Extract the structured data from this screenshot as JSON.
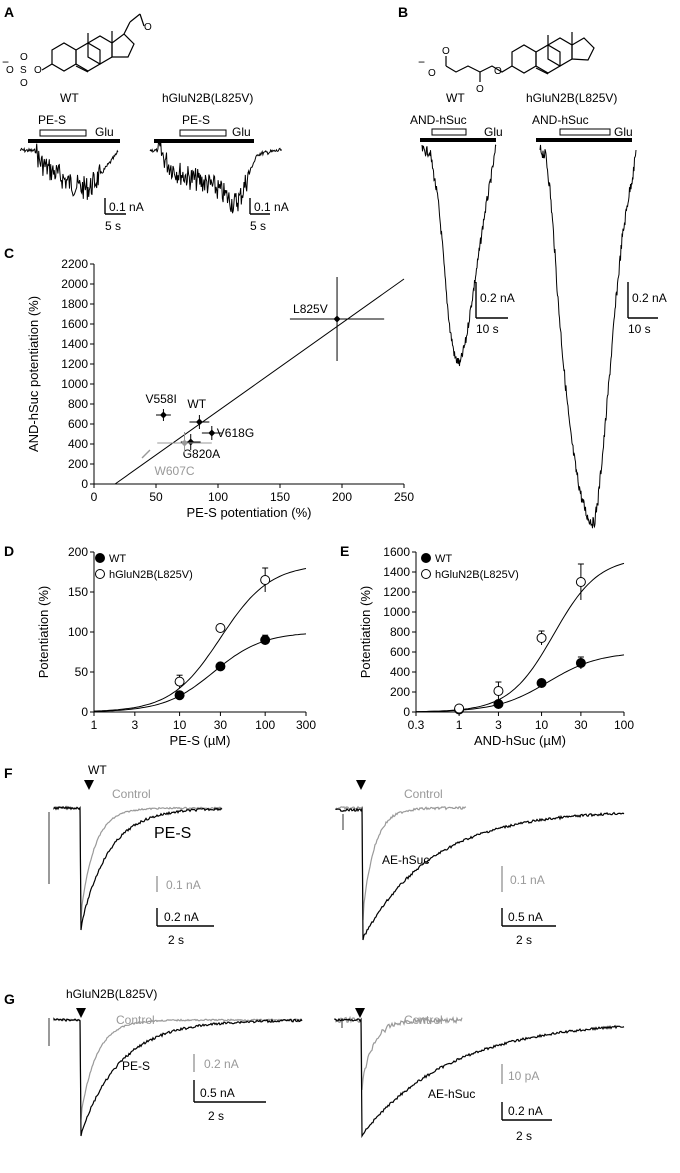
{
  "panels": {
    "A": {
      "label": "A",
      "left": {
        "title": "WT",
        "drug": "PE-S",
        "agonist": "Glu",
        "scale_current": "0.1 nA",
        "scale_time": "5 s"
      },
      "right": {
        "title": "hGluN2B(L825V)",
        "drug": "PE-S",
        "agonist": "Glu",
        "scale_current": "0.1 nA",
        "scale_time": "5 s"
      }
    },
    "B": {
      "label": "B",
      "left": {
        "title": "WT",
        "drug": "AND-hSuc",
        "agonist": "Glu",
        "scale_current": "0.2 nA",
        "scale_time": "10 s"
      },
      "right": {
        "title": "hGluN2B(L825V)",
        "drug": "AND-hSuc",
        "agonist": "Glu",
        "scale_current": "0.2 nA",
        "scale_time": "10 s"
      }
    },
    "C": {
      "label": "C"
    },
    "D": {
      "label": "D"
    },
    "E": {
      "label": "E"
    },
    "F": {
      "label": "F",
      "title": "WT",
      "left": {
        "control": "Control",
        "drug": "PE-S",
        "scale_gray": "0.1 nA",
        "scale_current": "0.2 nA",
        "scale_time": "2 s"
      },
      "right": {
        "control": "Control",
        "drug": "AE-hSuc",
        "scale_gray": "0.1 nA",
        "scale_current": "0.5 nA",
        "scale_time": "2 s"
      }
    },
    "G": {
      "label": "G",
      "title": "hGluN2B(L825V)",
      "left": {
        "control": "Control",
        "drug": "PE-S",
        "scale_gray": "0.2 nA",
        "scale_current": "0.5 nA",
        "scale_time": "2 s"
      },
      "right": {
        "control": "Control",
        "drug": "AE-hSuc",
        "scale_gray": "10 pA",
        "scale_current": "0.2 nA",
        "scale_time": "2 s"
      }
    }
  },
  "chart_data": [
    {
      "id": "C",
      "type": "scatter",
      "xlabel": "PE-S potentiation (%)",
      "ylabel": "AND-hSuc potentiation (%)",
      "xlim": [
        0,
        250
      ],
      "ylim": [
        0,
        2200
      ],
      "xticks": [
        "0",
        "50",
        "100",
        "150",
        "200",
        "250"
      ],
      "yticks": [
        "0",
        "200",
        "400",
        "600",
        "800",
        "1000",
        "1200",
        "1400",
        "1600",
        "1800",
        "2000",
        "2200"
      ],
      "points": [
        {
          "label": "L825V",
          "x": 196,
          "y": 1650,
          "xerr": 38,
          "yerr": 420
        },
        {
          "label": "V558I",
          "x": 56,
          "y": 690,
          "xerr": 6,
          "yerr": 60
        },
        {
          "label": "WT",
          "x": 85,
          "y": 620,
          "xerr": 8,
          "yerr": 70
        },
        {
          "label": "V618G",
          "x": 95,
          "y": 510,
          "xerr": 8,
          "yerr": 70
        },
        {
          "label": "G820A",
          "x": 78,
          "y": 420,
          "xerr": 8,
          "yerr": 80
        },
        {
          "label": "W607C",
          "x": 73,
          "y": 410,
          "xerr": 22,
          "yerr": 110
        }
      ],
      "fit": {
        "x0": 17,
        "x1": 250,
        "y0": 0,
        "y1": 2050
      }
    },
    {
      "id": "D",
      "type": "scatter",
      "xlabel": "PE-S (µM)",
      "ylabel": "Potentiation (%)",
      "xscale": "log",
      "xlim": [
        1,
        300
      ],
      "ylim": [
        0,
        200
      ],
      "xticks": [
        "1",
        "3",
        "10",
        "30",
        "100",
        "300"
      ],
      "yticks": [
        "0",
        "50",
        "100",
        "150",
        "200"
      ],
      "series": [
        {
          "name": "WT",
          "x": [
            10,
            30,
            100
          ],
          "y": [
            21,
            57,
            90
          ],
          "err": [
            4,
            3,
            6
          ],
          "fill": "#000",
          "fit": {
            "top": 100,
            "ec50": 25,
            "n": 1.5
          }
        },
        {
          "name": "hGluN2B(L825V)",
          "x": [
            10,
            30,
            100
          ],
          "y": [
            38,
            105,
            165
          ],
          "err": [
            8,
            3,
            15
          ],
          "fill": "#fff",
          "fit": {
            "top": 185,
            "ec50": 30,
            "n": 1.5
          }
        }
      ]
    },
    {
      "id": "E",
      "type": "scatter",
      "xlabel": "AND-hSuc (µM)",
      "ylabel": "Potentiation (%)",
      "xscale": "log",
      "xlim": [
        0.3,
        100
      ],
      "ylim": [
        0,
        1600
      ],
      "xticks": [
        "0.3",
        "1",
        "3",
        "10",
        "30",
        "100"
      ],
      "yticks": [
        "0",
        "200",
        "400",
        "600",
        "800",
        "1000",
        "1200",
        "1400",
        "1600"
      ],
      "series": [
        {
          "name": "WT",
          "x": [
            1,
            3,
            10,
            30
          ],
          "y": [
            25,
            80,
            290,
            490
          ],
          "err": [
            10,
            20,
            20,
            60
          ],
          "fill": "#000",
          "fit": {
            "top": 600,
            "ec50": 12,
            "n": 1.4
          }
        },
        {
          "name": "hGluN2B(L825V)",
          "x": [
            1,
            3,
            10,
            30
          ],
          "y": [
            35,
            210,
            740,
            1300
          ],
          "err": [
            15,
            90,
            70,
            180
          ],
          "fill": "#fff",
          "fit": {
            "top": 1550,
            "ec50": 14,
            "n": 1.6
          }
        }
      ]
    }
  ]
}
